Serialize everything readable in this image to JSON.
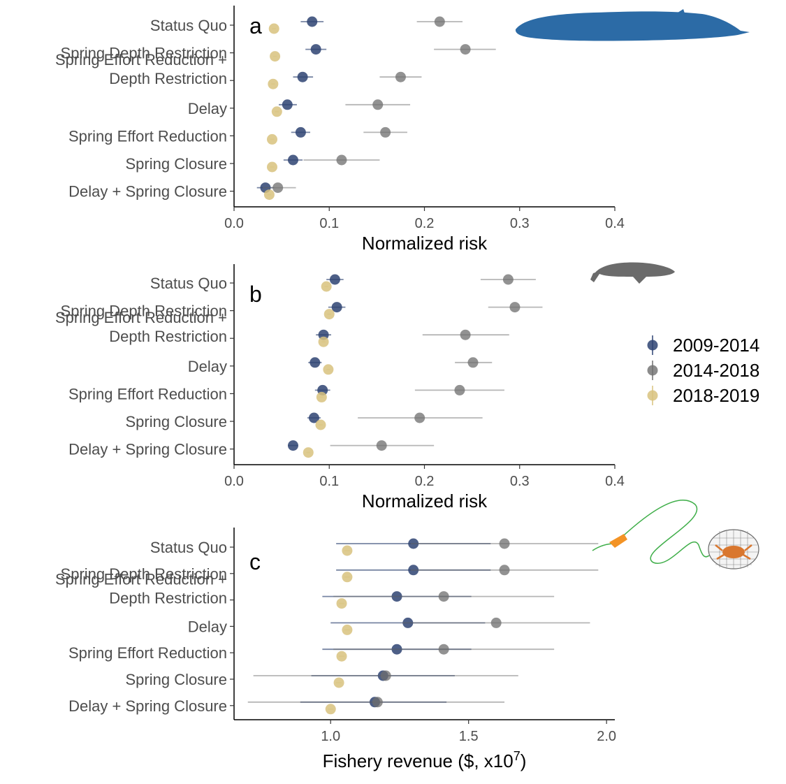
{
  "legend": {
    "entries": [
      {
        "label": "2009-2014",
        "color": "#2e4372"
      },
      {
        "label": "2014-2018",
        "color": "#6e6e6e"
      },
      {
        "label": "2018-2019",
        "color": "#d8c27e"
      }
    ]
  },
  "chart_data": [
    {
      "type": "scatter",
      "panel": "a",
      "icon": "blue-whale-icon",
      "xlabel": "Normalized risk",
      "xlim": [
        0.0,
        0.4
      ],
      "xticks": [
        "0.0",
        "0.1",
        "0.2",
        "0.3",
        "0.4"
      ],
      "categories": [
        "Status Quo",
        "Spring Depth Restriction",
        "Spring Effort Reduction + Depth Restriction",
        "Delay",
        "Spring Effort Reduction",
        "Spring Closure",
        "Delay + Spring Closure"
      ],
      "series": [
        {
          "name": "2009-2014",
          "values": [
            0.082,
            0.086,
            0.072,
            0.056,
            0.07,
            0.062,
            0.033
          ],
          "low": [
            0.07,
            0.075,
            0.062,
            0.047,
            0.06,
            0.052,
            0.024
          ],
          "high": [
            0.094,
            0.097,
            0.083,
            0.066,
            0.08,
            0.072,
            0.042
          ]
        },
        {
          "name": "2014-2018",
          "values": [
            0.216,
            0.243,
            0.175,
            0.151,
            0.159,
            0.113,
            0.046
          ],
          "low": [
            0.192,
            0.21,
            0.153,
            0.117,
            0.136,
            0.073,
            0.03
          ],
          "high": [
            0.24,
            0.275,
            0.197,
            0.185,
            0.182,
            0.153,
            0.065
          ]
        },
        {
          "name": "2018-2019",
          "values": [
            0.042,
            0.043,
            0.041,
            0.045,
            0.04,
            0.04,
            0.037
          ],
          "low": [
            0.04,
            0.041,
            0.039,
            0.043,
            0.038,
            0.038,
            0.035
          ],
          "high": [
            0.044,
            0.045,
            0.043,
            0.047,
            0.042,
            0.042,
            0.039
          ]
        }
      ]
    },
    {
      "type": "scatter",
      "panel": "b",
      "icon": "humpback-whale-icon",
      "xlabel": "Normalized risk",
      "xlim": [
        0.0,
        0.4
      ],
      "xticks": [
        "0.0",
        "0.1",
        "0.2",
        "0.3",
        "0.4"
      ],
      "categories": [
        "Status Quo",
        "Spring Depth Restriction",
        "Spring Effort Reduction + Depth Restriction",
        "Delay",
        "Spring Effort Reduction",
        "Spring Closure",
        "Delay + Spring Closure"
      ],
      "series": [
        {
          "name": "2009-2014",
          "values": [
            0.106,
            0.108,
            0.094,
            0.085,
            0.093,
            0.084,
            0.062
          ],
          "low": [
            0.097,
            0.099,
            0.086,
            0.078,
            0.085,
            0.077,
            0.057
          ],
          "high": [
            0.115,
            0.117,
            0.102,
            0.092,
            0.101,
            0.091,
            0.067
          ]
        },
        {
          "name": "2014-2018",
          "values": [
            0.288,
            0.295,
            0.243,
            0.251,
            0.237,
            0.195,
            0.155
          ],
          "low": [
            0.259,
            0.267,
            0.198,
            0.232,
            0.19,
            0.13,
            0.101
          ],
          "high": [
            0.317,
            0.324,
            0.289,
            0.271,
            0.284,
            0.261,
            0.21
          ]
        },
        {
          "name": "2018-2019",
          "values": [
            0.097,
            0.1,
            0.094,
            0.099,
            0.092,
            0.091,
            0.078
          ],
          "low": [
            0.095,
            0.098,
            0.092,
            0.097,
            0.09,
            0.089,
            0.076
          ],
          "high": [
            0.099,
            0.102,
            0.096,
            0.101,
            0.094,
            0.093,
            0.08
          ]
        }
      ]
    },
    {
      "type": "scatter",
      "panel": "c",
      "icon": "crab-trap-icon",
      "xlabel": "Fishery revenue ($, x10",
      "xlabel_exponent": "7",
      "xlabel_end": ")",
      "xlim": [
        0.65,
        2.03
      ],
      "xticks": [
        "1.0",
        "1.5",
        "2.0"
      ],
      "xtick_values": [
        1.0,
        1.5,
        2.0
      ],
      "categories": [
        "Status Quo",
        "Spring Depth Restriction",
        "Spring Effort Reduction + Depth Restriction",
        "Delay",
        "Spring Effort Reduction",
        "Spring Closure",
        "Delay + Spring Closure"
      ],
      "series": [
        {
          "name": "2009-2014",
          "values": [
            1.3,
            1.3,
            1.24,
            1.28,
            1.24,
            1.19,
            1.16
          ],
          "low": [
            1.02,
            1.02,
            0.97,
            1.0,
            0.97,
            0.93,
            0.89
          ],
          "high": [
            1.58,
            1.58,
            1.51,
            1.56,
            1.51,
            1.45,
            1.42
          ]
        },
        {
          "name": "2014-2018",
          "values": [
            1.63,
            1.63,
            1.41,
            1.6,
            1.41,
            1.2,
            1.17
          ],
          "low": [
            1.29,
            1.29,
            1.01,
            1.26,
            1.01,
            0.72,
            0.7
          ],
          "high": [
            1.97,
            1.97,
            1.81,
            1.94,
            1.81,
            1.68,
            1.63
          ]
        },
        {
          "name": "2018-2019",
          "values": [
            1.06,
            1.06,
            1.04,
            1.06,
            1.04,
            1.03,
            1.0
          ],
          "low": [
            1.05,
            1.05,
            1.03,
            1.05,
            1.03,
            1.02,
            0.99
          ],
          "high": [
            1.07,
            1.07,
            1.05,
            1.07,
            1.05,
            1.04,
            1.01
          ]
        }
      ]
    }
  ]
}
